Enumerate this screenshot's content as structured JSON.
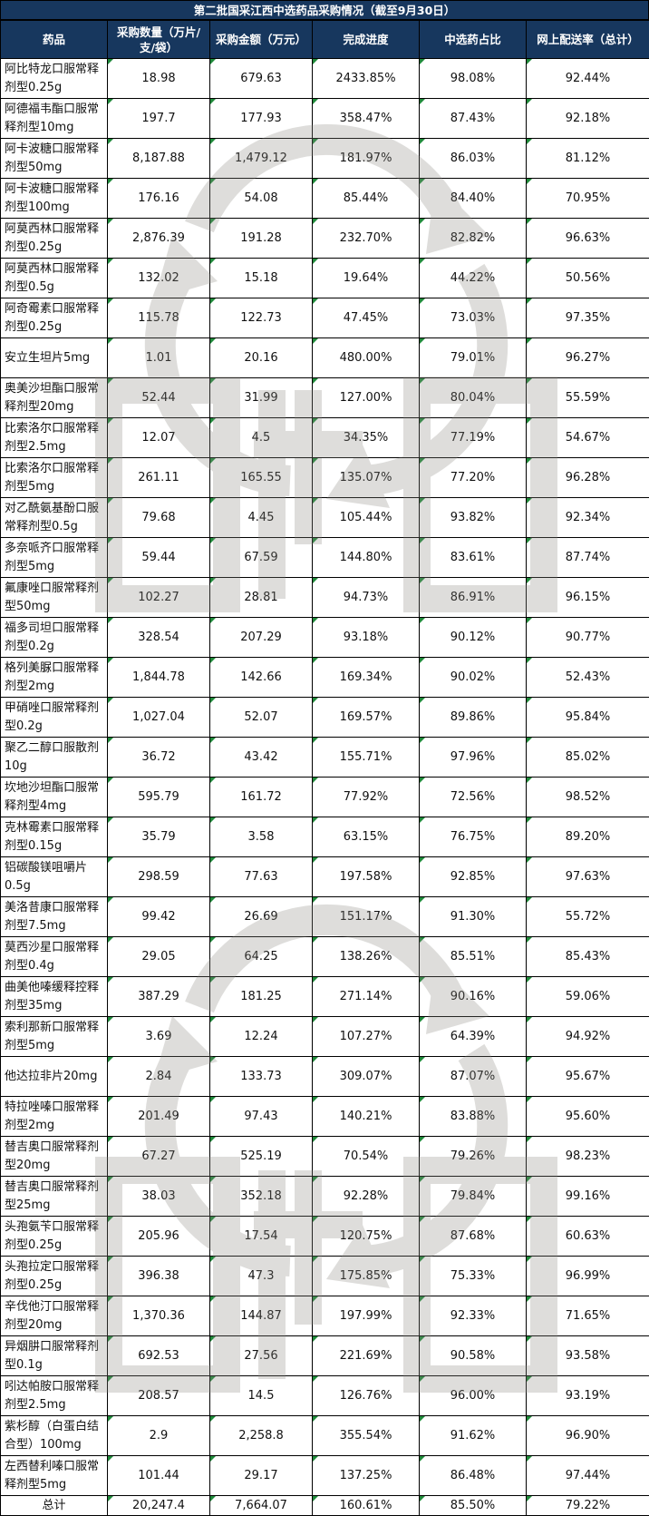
{
  "title": "第二批国采江西中选药品采购情况（截至9月30日）",
  "headers": [
    "药品",
    "采购数量（万片/支/袋）",
    "采购金额（万元）",
    "完成进度",
    "中选药占比",
    "网上配送率（总计）"
  ],
  "rows": [
    [
      "阿比特龙口服常释剂型0.25g",
      "18.98",
      "679.63",
      "2433.85%",
      "98.08%",
      "92.44%"
    ],
    [
      "阿德福韦酯口服常释剂型10mg",
      "197.7",
      "177.93",
      "358.47%",
      "87.43%",
      "92.18%"
    ],
    [
      "阿卡波糖口服常释剂型50mg",
      "8,187.88",
      "1,479.12",
      "181.97%",
      "86.03%",
      "81.12%"
    ],
    [
      "阿卡波糖口服常释剂型100mg",
      "176.16",
      "54.08",
      "85.44%",
      "84.40%",
      "70.95%"
    ],
    [
      "阿莫西林口服常释剂型0.25g",
      "2,876.39",
      "191.28",
      "232.70%",
      "82.82%",
      "96.63%"
    ],
    [
      "阿莫西林口服常释剂型0.5g",
      "132.02",
      "15.18",
      "19.64%",
      "44.22%",
      "50.56%"
    ],
    [
      "阿奇霉素口服常释剂型0.25g",
      "115.78",
      "122.73",
      "47.45%",
      "73.03%",
      "97.35%"
    ],
    [
      "安立生坦片5mg",
      "1.01",
      "20.16",
      "480.00%",
      "79.01%",
      "96.27%"
    ],
    [
      "奥美沙坦酯口服常释剂型20mg",
      "52.44",
      "31.99",
      "127.00%",
      "80.04%",
      "55.59%"
    ],
    [
      "比索洛尔口服常释剂型2.5mg",
      "12.07",
      "4.5",
      "34.35%",
      "77.19%",
      "54.67%"
    ],
    [
      "比索洛尔口服常释剂型5mg",
      "261.11",
      "165.55",
      "135.07%",
      "77.20%",
      "96.28%"
    ],
    [
      "对乙酰氨基酚口服常释剂型0.5g",
      "79.68",
      "4.45",
      "105.44%",
      "93.82%",
      "92.34%"
    ],
    [
      "多奈哌齐口服常释剂型5mg",
      "59.44",
      "67.59",
      "144.80%",
      "83.61%",
      "87.74%"
    ],
    [
      "氟康唑口服常释剂型50mg",
      "102.27",
      "28.81",
      "94.73%",
      "86.91%",
      "96.15%"
    ],
    [
      "福多司坦口服常释剂型0.2g",
      "328.54",
      "207.29",
      "93.18%",
      "90.12%",
      "90.77%"
    ],
    [
      "格列美脲口服常释剂型2mg",
      "1,844.78",
      "142.66",
      "169.34%",
      "90.02%",
      "52.43%"
    ],
    [
      "甲硝唑口服常释剂型0.2g",
      "1,027.04",
      "52.07",
      "169.57%",
      "89.86%",
      "95.84%"
    ],
    [
      "聚乙二醇口服散剂10g",
      "36.72",
      "43.42",
      "155.71%",
      "97.96%",
      "85.02%"
    ],
    [
      "坎地沙坦酯口服常释剂型4mg",
      "595.79",
      "161.72",
      "77.92%",
      "72.56%",
      "98.52%"
    ],
    [
      "克林霉素口服常释剂型0.15g",
      "35.79",
      "3.58",
      "63.15%",
      "76.75%",
      "89.20%"
    ],
    [
      "铝碳酸镁咀嚼片0.5g",
      "298.59",
      "77.63",
      "197.58%",
      "92.85%",
      "97.63%"
    ],
    [
      "美洛昔康口服常释剂型7.5mg",
      "99.42",
      "26.69",
      "151.17%",
      "91.30%",
      "55.72%"
    ],
    [
      "莫西沙星口服常释剂型0.4g",
      "29.05",
      "64.25",
      "138.26%",
      "85.51%",
      "85.43%"
    ],
    [
      "曲美他嗪缓释控释剂型35mg",
      "387.29",
      "181.25",
      "271.14%",
      "90.16%",
      "59.06%"
    ],
    [
      "索利那新口服常释剂型5mg",
      "3.69",
      "12.24",
      "107.27%",
      "64.39%",
      "94.92%"
    ],
    [
      "他达拉非片20mg",
      "2.84",
      "133.73",
      "309.07%",
      "87.07%",
      "95.67%"
    ],
    [
      "特拉唑嗪口服常释剂型2mg",
      "201.49",
      "97.43",
      "140.21%",
      "83.88%",
      "95.60%"
    ],
    [
      "替吉奥口服常释剂型20mg",
      "67.27",
      "525.19",
      "70.54%",
      "79.26%",
      "98.23%"
    ],
    [
      "替吉奥口服常释剂型25mg",
      "38.03",
      "352.18",
      "92.28%",
      "79.84%",
      "99.16%"
    ],
    [
      "头孢氨苄口服常释剂型0.25g",
      "205.96",
      "17.54",
      "120.75%",
      "87.68%",
      "60.63%"
    ],
    [
      "头孢拉定口服常释剂型0.25g",
      "396.38",
      "47.3",
      "175.85%",
      "75.33%",
      "96.99%"
    ],
    [
      "辛伐他汀口服常释剂型20mg",
      "1,370.36",
      "144.87",
      "197.99%",
      "92.33%",
      "71.65%"
    ],
    [
      "异烟肼口服常释剂型0.1g",
      "692.53",
      "27.56",
      "221.69%",
      "90.58%",
      "93.58%"
    ],
    [
      "吲达帕胺口服常释剂型2.5mg",
      "208.57",
      "14.5",
      "126.76%",
      "96.00%",
      "93.19%"
    ],
    [
      "紫杉醇（白蛋白结合型）100mg",
      "2.9",
      "2,258.8",
      "355.54%",
      "91.62%",
      "96.90%"
    ],
    [
      "左西替利嗪口服常释剂型5mg",
      "101.44",
      "29.17",
      "137.25%",
      "86.48%",
      "97.44%"
    ]
  ],
  "total": [
    "总计",
    "20,247.4",
    "7,664.07",
    "160.61%",
    "85.50%",
    "79.22%"
  ],
  "watermark": {
    "icon": "watermark-circle-arrows-logo",
    "color": "#8a8880"
  }
}
